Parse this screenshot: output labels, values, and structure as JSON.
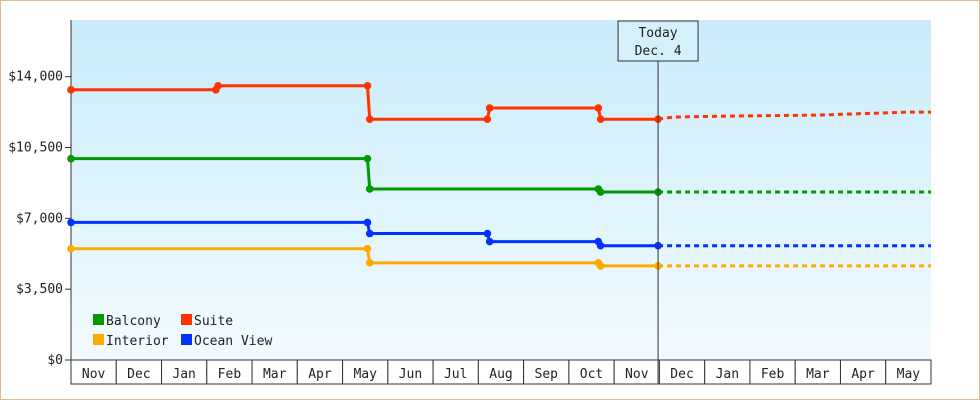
{
  "chart_data": {
    "type": "line",
    "step": true,
    "x_tick_labels": [
      "Nov",
      "Dec",
      "Jan",
      "Feb",
      "Mar",
      "Apr",
      "May",
      "Jun",
      "Jul",
      "Aug",
      "Sep",
      "Oct",
      "Nov",
      "Dec",
      "Jan",
      "Feb",
      "Mar",
      "Apr",
      "May"
    ],
    "y_tick_labels": [
      "$0",
      "$3,500",
      "$7,000",
      "$10,500",
      "$14,000"
    ],
    "ylim": [
      0,
      16800
    ],
    "grid": false,
    "today_marker": {
      "line1": "Today",
      "line2": "Dec. 4",
      "x": 12.97
    },
    "legend": {
      "placement": "bottom-left"
    },
    "series": [
      {
        "name": "Suite",
        "color": "#ff3300",
        "x": [
          0.0,
          3.2,
          3.25,
          6.55,
          6.6,
          9.2,
          9.25,
          11.65,
          11.7,
          12.97
        ],
        "values": [
          13350,
          13350,
          13550,
          13550,
          11900,
          11900,
          12450,
          12450,
          11900,
          11900
        ],
        "forecast": {
          "x": [
            12.97,
            13.3,
            14.5,
            16.5,
            18.5,
            19.0
          ],
          "values": [
            11900,
            12000,
            12050,
            12100,
            12250,
            12250
          ]
        }
      },
      {
        "name": "Balcony",
        "color": "#009900",
        "x": [
          0.0,
          6.55,
          6.6,
          11.65,
          11.7,
          12.97
        ],
        "values": [
          9950,
          9950,
          8450,
          8450,
          8300,
          8300
        ],
        "forecast": {
          "x": [
            12.97,
            19.0
          ],
          "values": [
            8300,
            8300
          ]
        }
      },
      {
        "name": "Ocean View",
        "color": "#0033ff",
        "x": [
          0.0,
          6.55,
          6.6,
          9.2,
          9.25,
          11.65,
          11.7,
          12.97
        ],
        "values": [
          6800,
          6800,
          6250,
          6250,
          5850,
          5850,
          5650,
          5650
        ],
        "forecast": {
          "x": [
            12.97,
            19.0
          ],
          "values": [
            5650,
            5650
          ]
        }
      },
      {
        "name": "Interior",
        "color": "#ffaa00",
        "x": [
          0.0,
          6.55,
          6.6,
          11.65,
          11.7,
          12.97
        ],
        "values": [
          5500,
          5500,
          4800,
          4800,
          4650,
          4650
        ],
        "forecast": {
          "x": [
            12.97,
            19.0
          ],
          "values": [
            4650,
            4650
          ]
        }
      }
    ]
  },
  "legend_items": [
    {
      "name": "Balcony",
      "color": "#009900"
    },
    {
      "name": "Suite",
      "color": "#ff3300"
    },
    {
      "name": "Interior",
      "color": "#ffaa00"
    },
    {
      "name": "Ocean View",
      "color": "#0033ff"
    }
  ]
}
